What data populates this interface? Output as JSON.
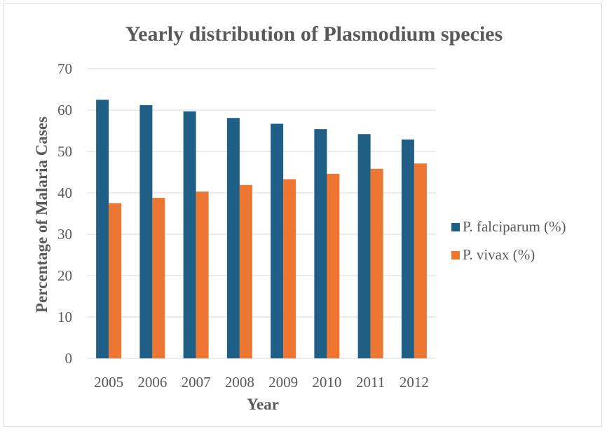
{
  "chart_data": {
    "type": "bar",
    "title": "Yearly distribution of Plasmodium species",
    "xlabel": "Year",
    "ylabel": "Percentage of Malaria Cases",
    "categories": [
      "2005",
      "2006",
      "2007",
      "2008",
      "2009",
      "2010",
      "2011",
      "2012"
    ],
    "ylim": [
      0,
      70
    ],
    "yticks": [
      "0",
      "10",
      "20",
      "30",
      "40",
      "50",
      "60",
      "70"
    ],
    "grid": true,
    "legend_position": "right",
    "series": [
      {
        "name": "P. falciparum (%)",
        "color": "#1f5f86",
        "values": [
          62.5,
          61.2,
          59.7,
          58.1,
          56.7,
          55.4,
          54.2,
          52.9
        ]
      },
      {
        "name": "P. vivax (%)",
        "color": "#ed7632",
        "values": [
          37.5,
          38.8,
          40.3,
          41.9,
          43.3,
          44.6,
          45.8,
          47.1
        ]
      }
    ]
  }
}
